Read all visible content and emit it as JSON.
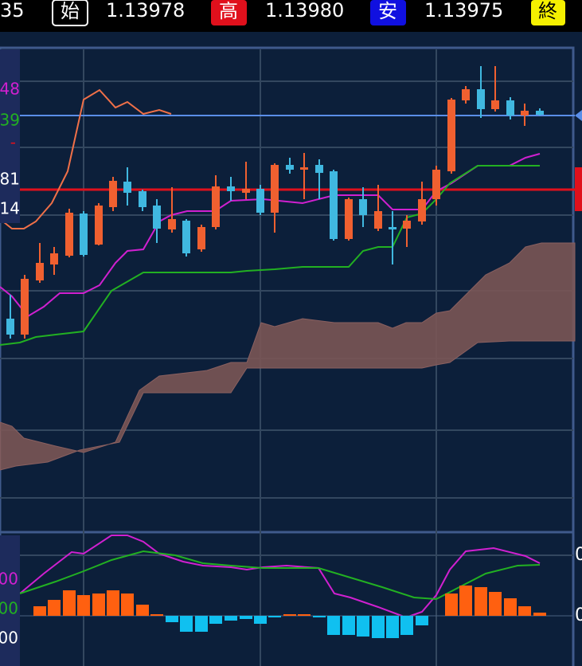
{
  "header": {
    "bid_tail": "35",
    "open_label": "始",
    "open_value": "1.13978",
    "high_label": "高",
    "high_value": "1.13980",
    "low_label": "安",
    "low_value": "1.13975",
    "close_label": "終"
  },
  "main_panel": {
    "labels": [
      "48",
      "39",
      "-",
      "81",
      "14"
    ]
  },
  "macd_panel": {
    "labels": [
      "00",
      "00",
      "00"
    ],
    "right_labels": [
      "0",
      "0"
    ]
  }
}
